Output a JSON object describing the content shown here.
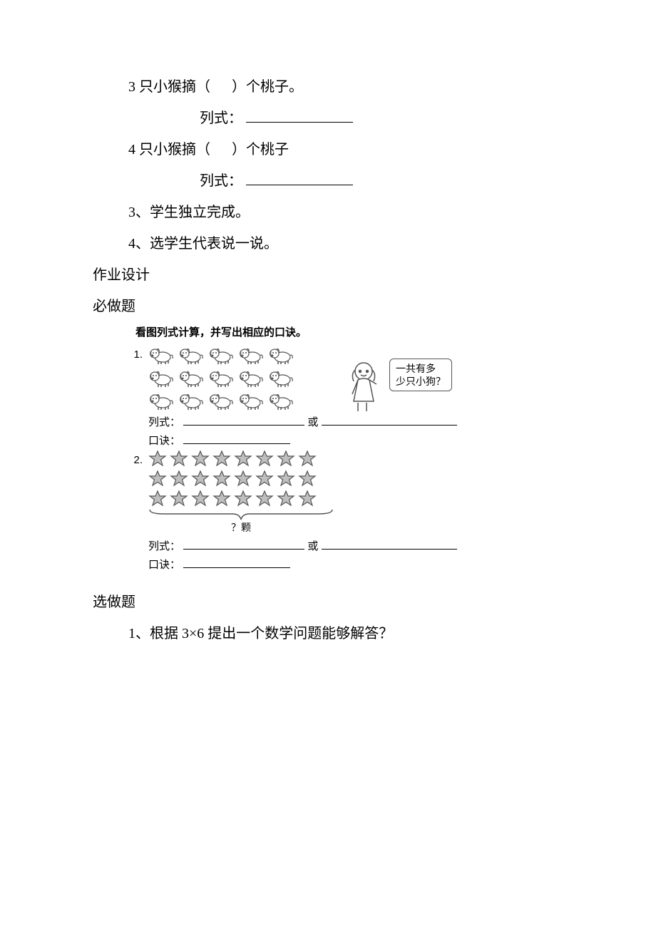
{
  "q1": {
    "line1_pre": "3 只小猴摘（",
    "line1_post": "）个桃子。",
    "formula_label": "列式："
  },
  "q2": {
    "line1_pre": "4 只小猴摘（",
    "line1_post": "）个桃子",
    "formula_label": "列式："
  },
  "steps": {
    "s3": "3、学生独立完成。",
    "s4": "4、选学生代表说一说。"
  },
  "sections": {
    "homework": "作业设计",
    "required": "必做题",
    "optional": "选做题"
  },
  "worksheet": {
    "title": "看图列式计算，并写出相应的口诀。",
    "bubble_l1": "一共有多",
    "bubble_l2": "少只小狗？",
    "item1": {
      "num": "1.",
      "dog_rows": [
        5,
        5,
        5
      ],
      "formula_label": "列式：",
      "or": "或",
      "chant_label": "口诀："
    },
    "item2": {
      "num": "2.",
      "star_rows": [
        8,
        8,
        8
      ],
      "brace_label": "？颗",
      "formula_label": "列式：",
      "or": "或",
      "chant_label": "口诀："
    }
  },
  "optional_q": {
    "q1": "1、根据 3×6 提出一个数学问题能够解答？"
  },
  "colors": {
    "text": "#000000",
    "bg": "#ffffff",
    "bubble_border": "#555555",
    "star_fill": "#bfbfbf",
    "star_stroke": "#555555"
  }
}
